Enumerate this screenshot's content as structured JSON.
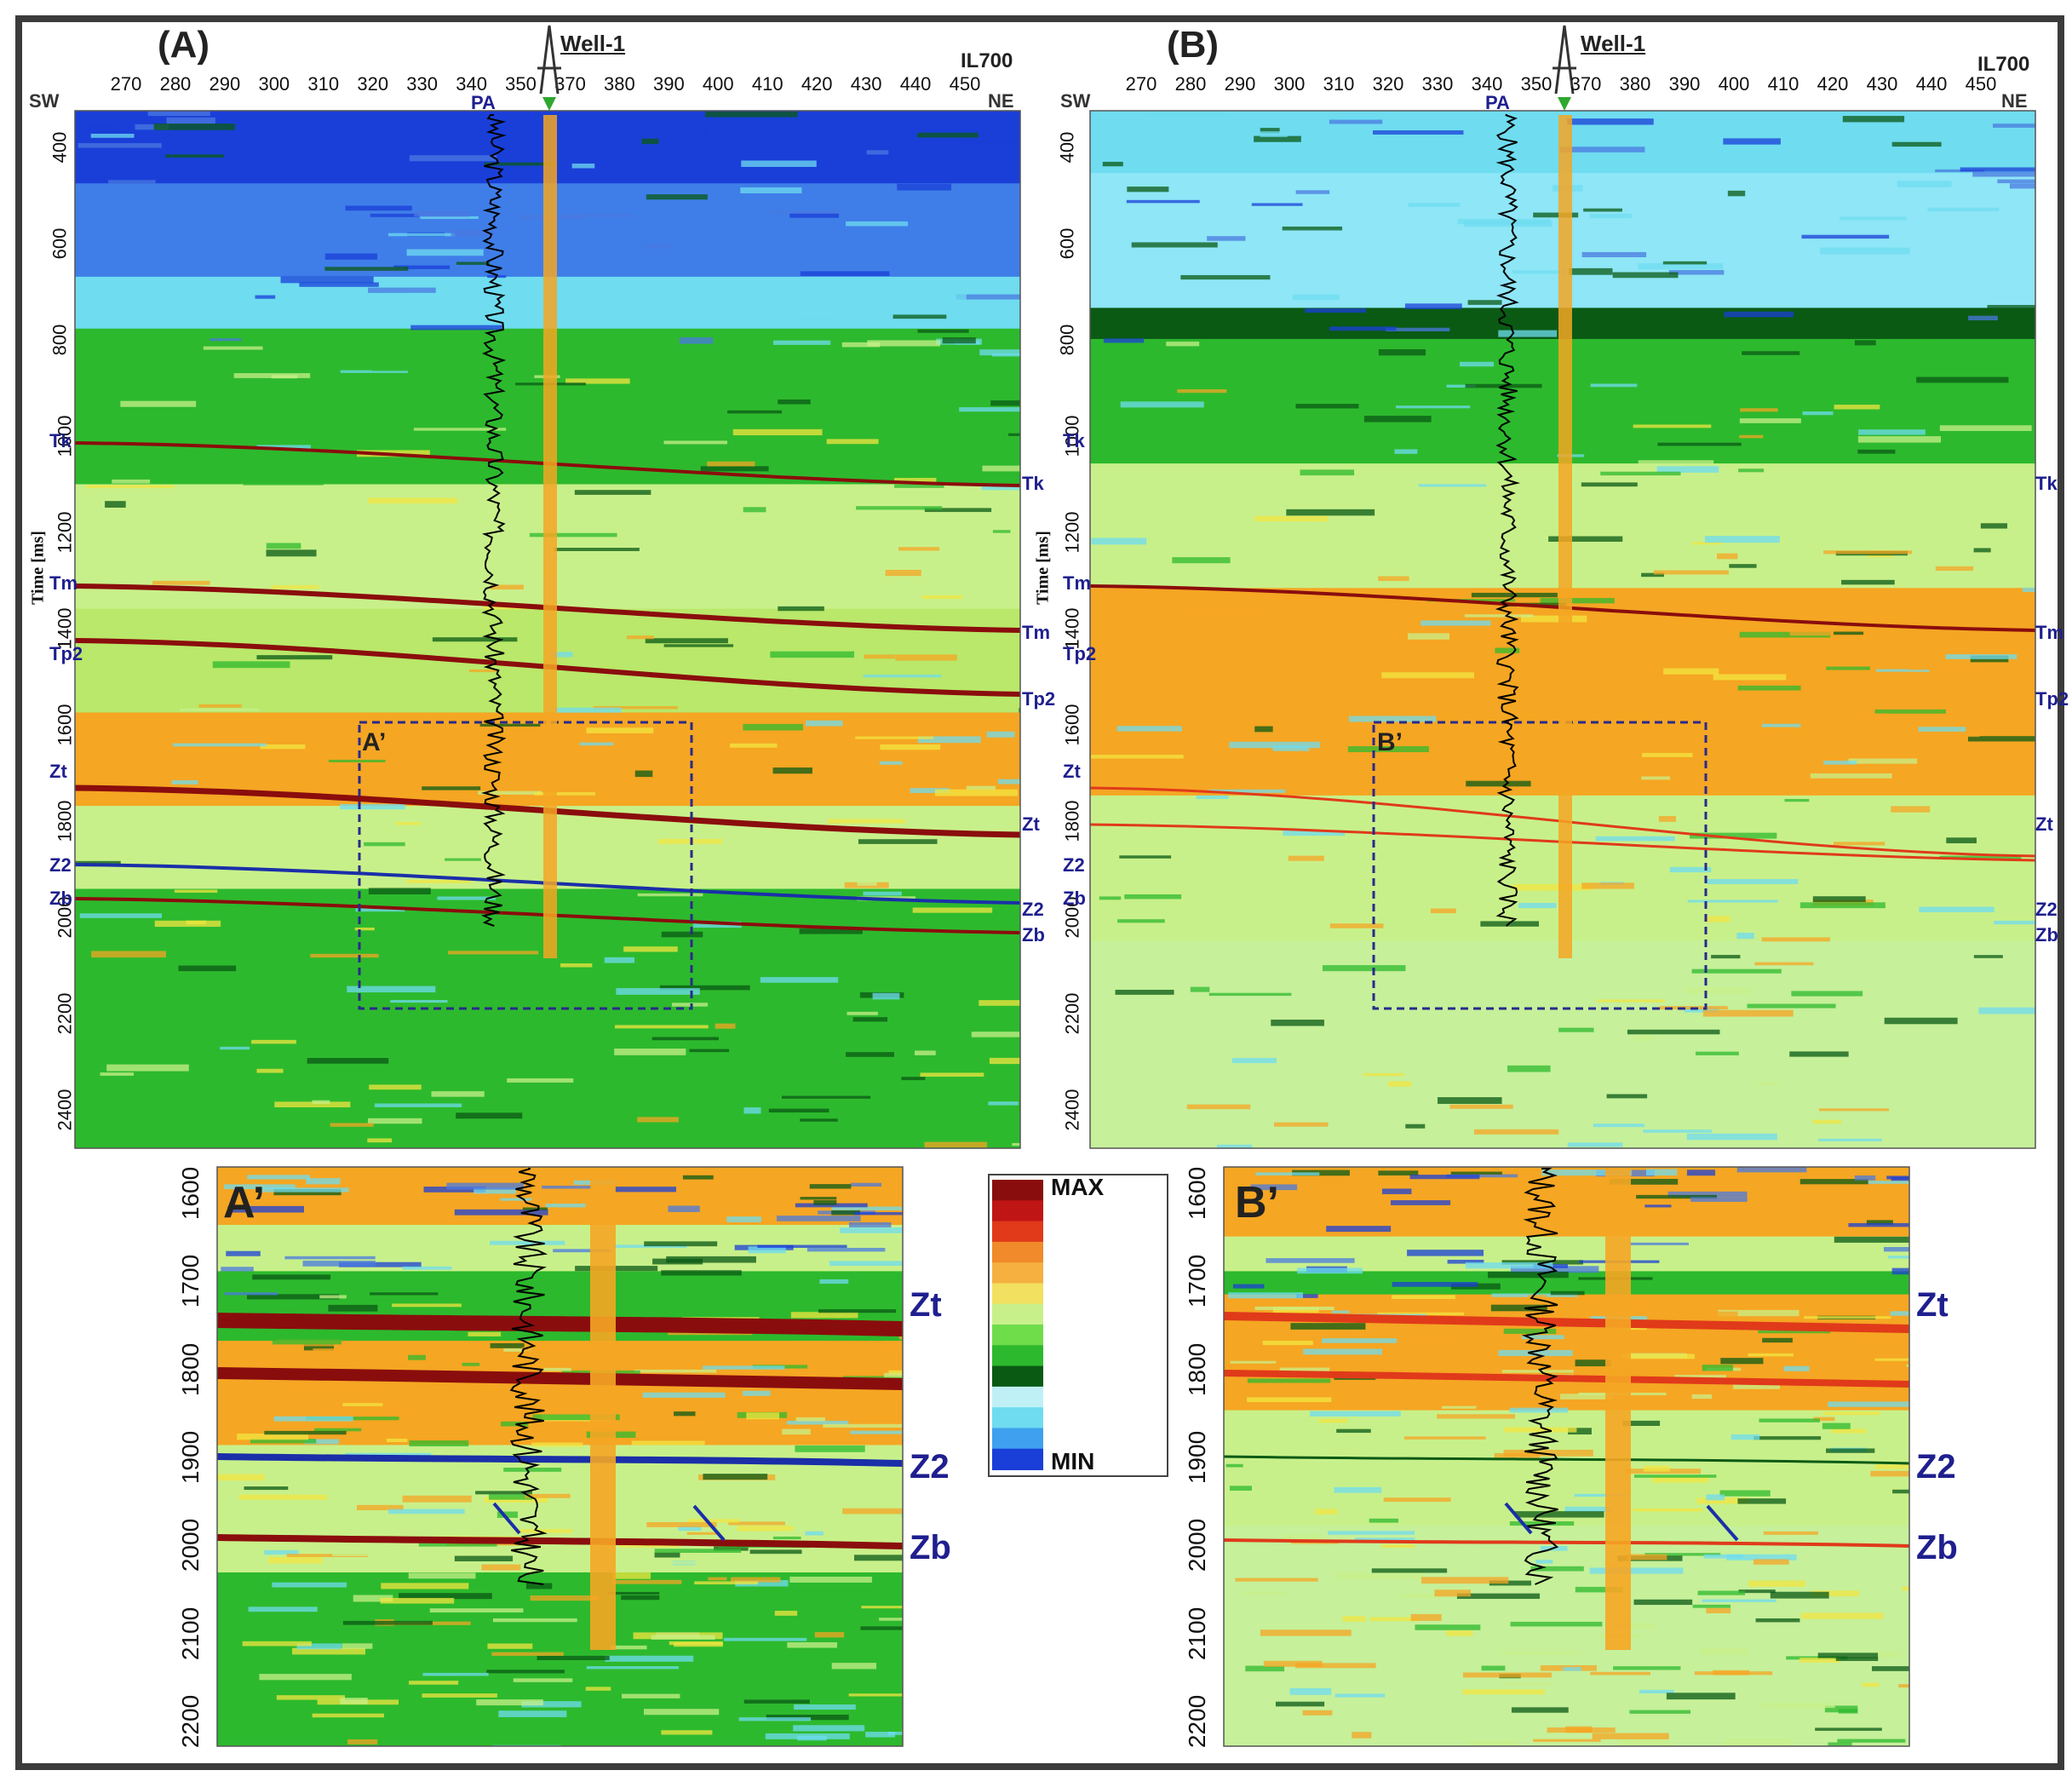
{
  "panels": {
    "A": {
      "letter": "(A)",
      "well_name": "Well-1",
      "inline": "IL700",
      "sw": "SW",
      "ne": "NE",
      "pa": "PA",
      "y_axis_label": "Time [ms]",
      "box_label": "A’",
      "x_ticks": [
        "270",
        "280",
        "290",
        "300",
        "310",
        "320",
        "330",
        "340",
        "350",
        "370",
        "380",
        "390",
        "400",
        "410",
        "420",
        "430",
        "440",
        "450"
      ],
      "y_ticks": [
        "400",
        "600",
        "800",
        "1000",
        "1200",
        "1400",
        "1600",
        "1800",
        "2000",
        "2200",
        "2400"
      ],
      "horizons_left": [
        "Tk",
        "Tm",
        "Tp2",
        "Zt",
        "Z2",
        "Zb"
      ],
      "horizons_right": [
        "Tk",
        "Tm",
        "Tp2",
        "Zt",
        "Z2",
        "Zb"
      ]
    },
    "B": {
      "letter": "(B)",
      "well_name": "Well-1",
      "inline": "IL700",
      "sw": "SW",
      "ne": "NE",
      "pa": "PA",
      "y_axis_label": "Time [ms]",
      "box_label": "B’",
      "x_ticks": [
        "270",
        "280",
        "290",
        "300",
        "310",
        "320",
        "330",
        "340",
        "350",
        "370",
        "380",
        "390",
        "400",
        "410",
        "420",
        "430",
        "440",
        "450"
      ],
      "y_ticks": [
        "400",
        "600",
        "800",
        "1000",
        "1200",
        "1400",
        "1600",
        "1800",
        "2000",
        "2200",
        "2400"
      ],
      "horizons_left": [
        "Tk",
        "Tm",
        "Tp2",
        "Zt",
        "Z2",
        "Zb"
      ],
      "horizons_right": [
        "Tk",
        "Tm",
        "Tp2",
        "Zt",
        "Z2",
        "Zb"
      ]
    },
    "A_zoom": {
      "letter": "A’",
      "y_ticks": [
        "1600",
        "1700",
        "1800",
        "1900",
        "2000",
        "2100",
        "2200"
      ],
      "horizons": [
        "Zt",
        "Z2",
        "Zb"
      ]
    },
    "B_zoom": {
      "letter": "B’",
      "y_ticks": [
        "1600",
        "1700",
        "1800",
        "1900",
        "2000",
        "2100",
        "2200"
      ],
      "horizons": [
        "Zt",
        "Z2",
        "Zb"
      ]
    }
  },
  "colorbar": {
    "max_label": "MAX",
    "min_label": "MIN"
  },
  "colors": {
    "blue": "#1a3fd8",
    "cyan": "#6fdcf0",
    "green": "#2db92d",
    "darkgreen": "#0a5a14",
    "lightgreen": "#c8f08a",
    "yellow": "#f2e640",
    "orange": "#f5a623",
    "red": "#e03a1a",
    "darkred": "#8a0d0d",
    "horizon_text": "#1f1f8f",
    "box": "#2a2a8a",
    "well_marker": "#2fa82f"
  }
}
